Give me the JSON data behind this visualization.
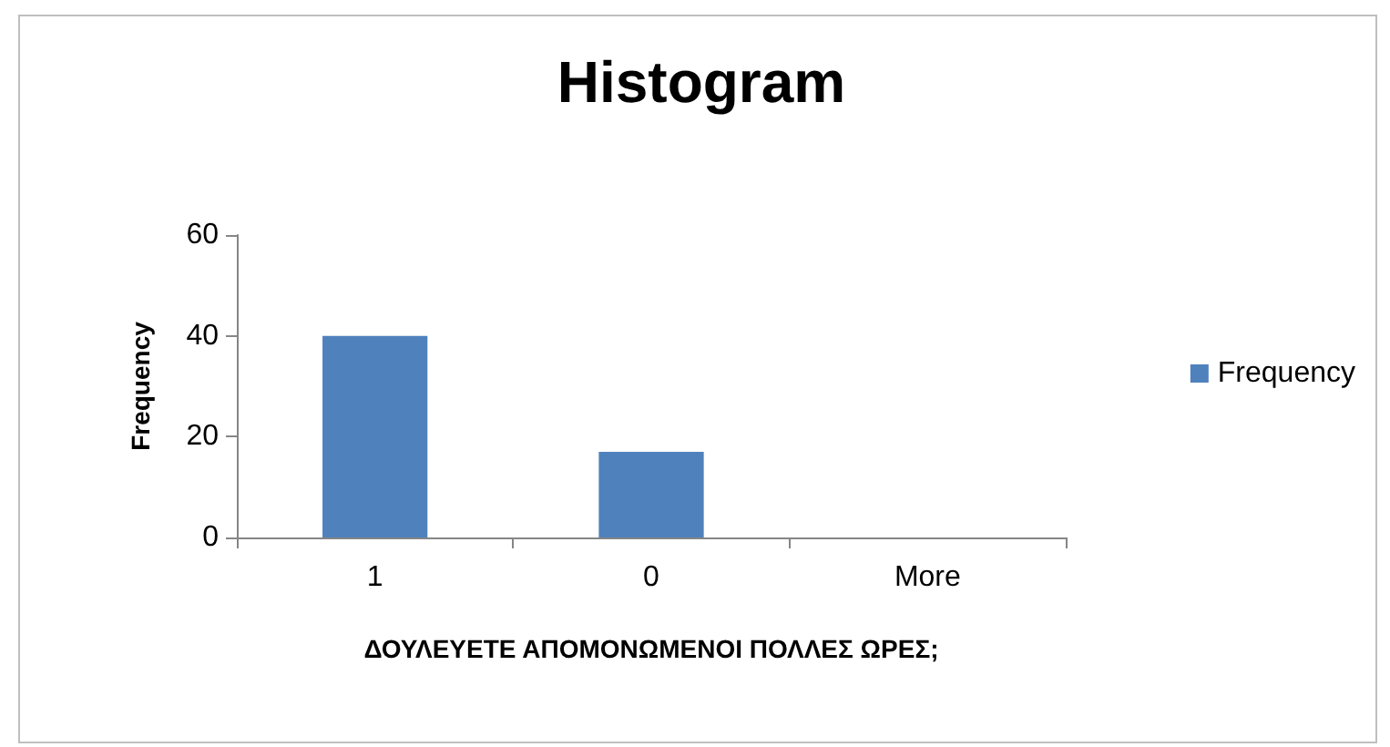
{
  "chart_data": {
    "type": "bar",
    "title": "Histogram",
    "xlabel": "ΔΟΥΛΕΥΕΤΕ ΑΠΟΜΟΝΩΜΕΝΟΙ ΠΟΛΛΕΣ ΩΡΕΣ;",
    "ylabel": "Frequency",
    "categories": [
      "1",
      "0",
      "More"
    ],
    "series": [
      {
        "name": "Frequency",
        "color": "#4f81bd",
        "values": [
          40,
          17,
          0
        ]
      }
    ],
    "ylim": [
      0,
      60
    ],
    "yticks": [
      0,
      20,
      40,
      60
    ],
    "grid": false,
    "legend": "right"
  }
}
